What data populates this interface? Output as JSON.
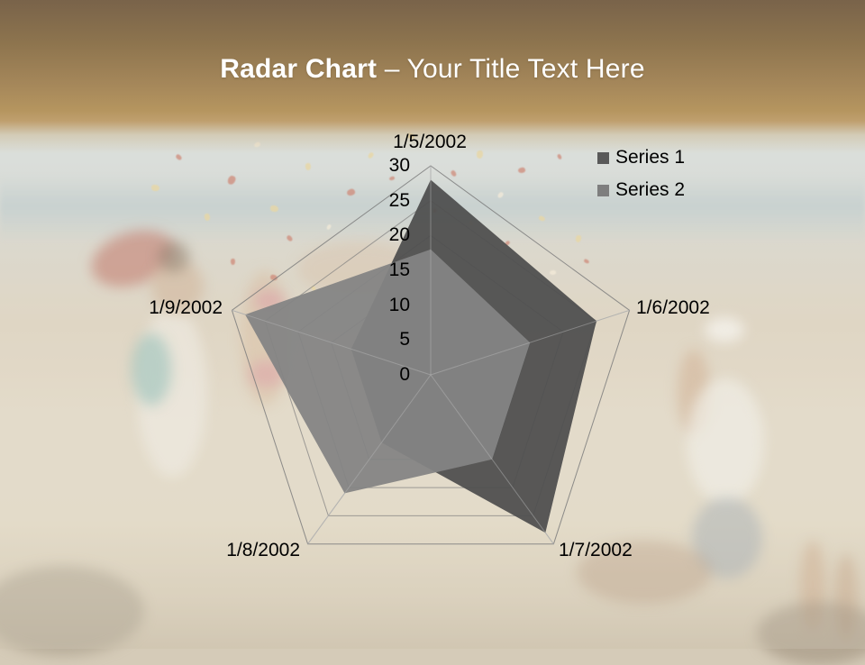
{
  "slide": {
    "title_bold": "Radar Chart",
    "title_rest": " – Your Title Text Here"
  },
  "chart_data": {
    "type": "radar",
    "title": "",
    "categories": [
      "1/5/2002",
      "1/6/2002",
      "1/7/2002",
      "1/8/2002",
      "1/9/2002"
    ],
    "series": [
      {
        "name": "Series 1",
        "color": "#4f4f4f",
        "values": [
          28,
          25,
          28,
          12,
          12
        ]
      },
      {
        "name": "Series 2",
        "color": "#848484",
        "values": [
          18,
          15,
          15,
          21,
          28
        ]
      }
    ],
    "radial_ticks": [
      0,
      5,
      10,
      15,
      20,
      25,
      30
    ],
    "rmin": 0,
    "rmax": 30,
    "ring_step": 5,
    "grid": true,
    "legend_position": "top-right",
    "gridline_color": "#7d7d7d",
    "spoke_color": "#a8a8a8",
    "label_color": "#000000"
  }
}
